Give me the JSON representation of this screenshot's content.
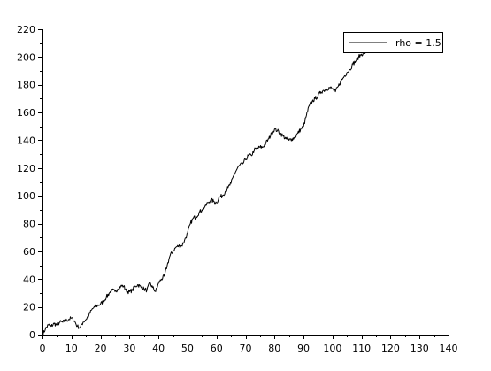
{
  "chart_data": {
    "type": "line",
    "title": "",
    "xlabel": "",
    "ylabel": "",
    "xlim": [
      0,
      140
    ],
    "ylim": [
      0,
      220
    ],
    "x_ticks": [
      0,
      10,
      20,
      30,
      40,
      50,
      60,
      70,
      80,
      90,
      100,
      110,
      120,
      130,
      140
    ],
    "y_ticks": [
      0,
      20,
      40,
      60,
      80,
      100,
      120,
      140,
      160,
      180,
      200,
      220
    ],
    "x_tick_labels": [
      "0",
      "10",
      "20",
      "30",
      "40",
      "50",
      "60",
      "70",
      "80",
      "90",
      "100",
      "110",
      "120",
      "130",
      "140"
    ],
    "y_tick_labels": [
      "0",
      "20",
      "40",
      "60",
      "80",
      "100",
      "120",
      "140",
      "160",
      "180",
      "200",
      "220"
    ],
    "grid": false,
    "legend_position": "top-right",
    "series": [
      {
        "name": "rho = 1.5",
        "color": "#000000",
        "x": [
          0,
          1,
          2,
          3,
          4,
          5,
          6,
          7,
          8,
          9,
          10,
          11,
          12,
          13,
          14,
          15,
          16,
          17,
          18,
          19,
          20,
          21,
          22,
          23,
          24,
          25,
          26,
          27,
          28,
          29,
          30,
          31,
          32,
          33,
          34,
          35,
          36,
          37,
          38,
          39,
          40,
          41,
          42,
          43,
          44,
          45,
          46,
          47,
          48,
          49,
          50,
          51,
          52,
          53,
          54,
          55,
          56,
          57,
          58,
          59,
          60,
          61,
          62,
          63,
          64,
          65,
          66,
          67,
          68,
          69,
          70,
          71,
          72,
          73,
          74,
          75,
          76,
          77,
          78,
          79,
          80,
          81,
          82,
          83,
          84,
          85,
          86,
          87,
          88,
          89,
          90,
          91,
          92,
          93,
          94,
          95,
          96,
          97,
          98,
          99,
          100,
          101,
          102,
          103,
          104,
          105,
          106,
          107,
          108,
          109,
          110,
          111,
          112,
          113,
          114,
          115,
          116,
          117,
          118,
          119,
          120,
          121,
          122
        ],
        "values": [
          0,
          4,
          7,
          6,
          8,
          7,
          9,
          9,
          10,
          11,
          12,
          10,
          6,
          5,
          9,
          11,
          14,
          18,
          20,
          21,
          22,
          24,
          27,
          30,
          32,
          31,
          33,
          35,
          35,
          31,
          31,
          32,
          35,
          36,
          34,
          33,
          32,
          37,
          34,
          31,
          37,
          40,
          42,
          50,
          57,
          60,
          63,
          64,
          64,
          68,
          73,
          80,
          84,
          85,
          88,
          90,
          92,
          95,
          97,
          96,
          95,
          99,
          100,
          103,
          106,
          109,
          115,
          119,
          122,
          123,
          126,
          129,
          129,
          133,
          134,
          135,
          135,
          138,
          141,
          145,
          148,
          147,
          145,
          143,
          141,
          140,
          141,
          142,
          145,
          148,
          150,
          158,
          165,
          168,
          170,
          172,
          175,
          176,
          177,
          178,
          177,
          175,
          179,
          183,
          186,
          189,
          191,
          195,
          197,
          200,
          202,
          203,
          204,
          205,
          206,
          207,
          208,
          209,
          210,
          211,
          212,
          213,
          213
        ]
      }
    ]
  }
}
